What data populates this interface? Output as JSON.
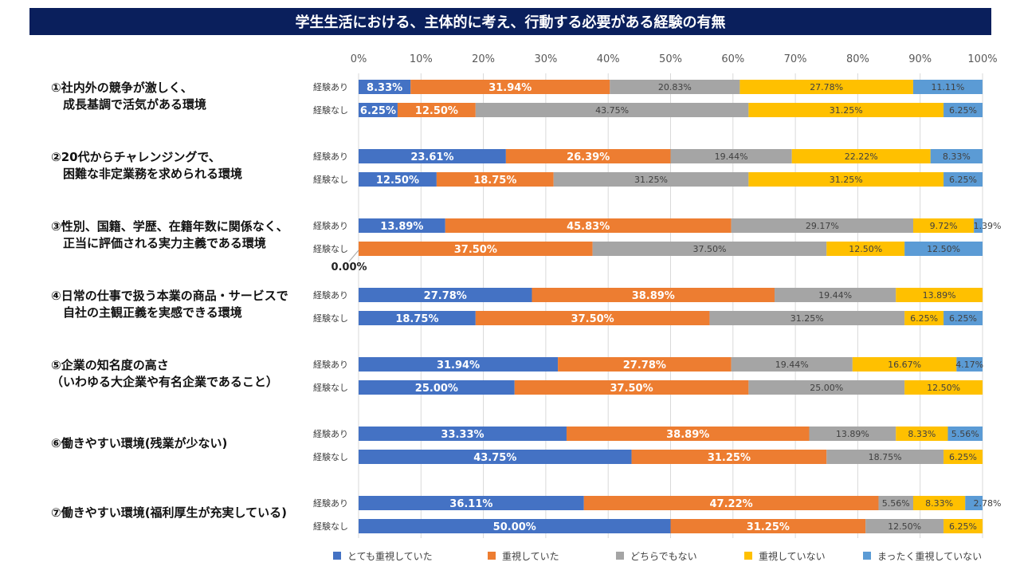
{
  "chart_data": {
    "type": "bar",
    "orientation": "horizontal",
    "stacked": true,
    "title": "学生生活における、主体的に考え、行動する必要がある経験の有無",
    "xlim": [
      0,
      100
    ],
    "xticks": [
      "0%",
      "10%",
      "20%",
      "30%",
      "40%",
      "50%",
      "60%",
      "70%",
      "80%",
      "90%",
      "100%"
    ],
    "grid": true,
    "legend_position": "bottom",
    "series": [
      {
        "name": "とても重視していた",
        "color": "#4472c4"
      },
      {
        "name": "重視していた",
        "color": "#ed7d31"
      },
      {
        "name": "どちらでもない",
        "color": "#a5a5a5"
      },
      {
        "name": "重視していない",
        "color": "#ffc000"
      },
      {
        "name": "まったく重視していない",
        "color": "#5b9bd5"
      }
    ],
    "groups": [
      {
        "label": "①社内外の競争が激しく、\n　成長基調で活気がある環境",
        "rows": [
          {
            "label": "経験あり",
            "values": [
              8.33,
              31.94,
              20.83,
              27.78,
              11.11
            ]
          },
          {
            "label": "経験なし",
            "values": [
              6.25,
              12.5,
              43.75,
              31.25,
              6.25
            ]
          }
        ]
      },
      {
        "label": "②20代からチャレンジングで、\n　困難な非定業務を求められる環境",
        "rows": [
          {
            "label": "経験あり",
            "values": [
              23.61,
              26.39,
              19.44,
              22.22,
              8.33
            ]
          },
          {
            "label": "経験なし",
            "values": [
              12.5,
              18.75,
              31.25,
              31.25,
              6.25
            ]
          }
        ]
      },
      {
        "label": "③性別、国籍、学歴、在籍年数に関係なく、\n　正当に評価される実力主義である環境",
        "rows": [
          {
            "label": "経験あり",
            "values": [
              13.89,
              45.83,
              29.17,
              9.72,
              1.39
            ]
          },
          {
            "label": "経験なし",
            "values": [
              0.0,
              37.5,
              37.5,
              12.5,
              12.5
            ]
          }
        ]
      },
      {
        "label": "④日常の仕事で扱う本業の商品・サービスで\n　自社の主観正義を実感できる環境",
        "rows": [
          {
            "label": "経験あり",
            "values": [
              27.78,
              38.89,
              19.44,
              13.89,
              0
            ]
          },
          {
            "label": "経験なし",
            "values": [
              18.75,
              37.5,
              31.25,
              6.25,
              6.25
            ]
          }
        ]
      },
      {
        "label": "⑤企業の知名度の高さ\n（いわゆる大企業や有名企業であること）",
        "rows": [
          {
            "label": "経験あり",
            "values": [
              31.94,
              27.78,
              19.44,
              16.67,
              4.17
            ]
          },
          {
            "label": "経験なし",
            "values": [
              25.0,
              37.5,
              25.0,
              12.5,
              0
            ]
          }
        ]
      },
      {
        "label": "⑥働きやすい環境(残業が少ない)",
        "rows": [
          {
            "label": "経験あり",
            "values": [
              33.33,
              38.89,
              13.89,
              8.33,
              5.56
            ]
          },
          {
            "label": "経験なし",
            "values": [
              43.75,
              31.25,
              18.75,
              6.25,
              0
            ]
          }
        ]
      },
      {
        "label": "⑦働きやすい環境(福利厚生が充実している)",
        "rows": [
          {
            "label": "経験あり",
            "values": [
              36.11,
              47.22,
              5.56,
              8.33,
              2.78
            ]
          },
          {
            "label": "経験なし",
            "values": [
              50.0,
              31.25,
              12.5,
              6.25,
              0
            ]
          }
        ]
      }
    ]
  }
}
